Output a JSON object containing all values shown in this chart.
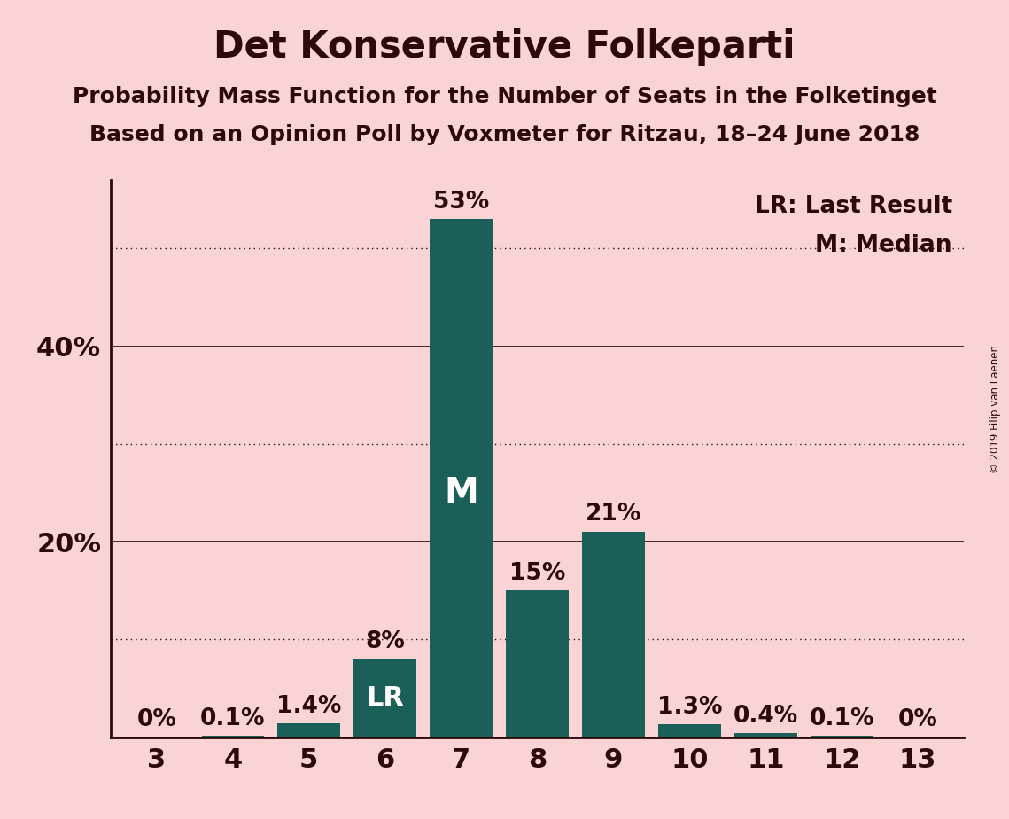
{
  "title": "Det Konservative Folkeparti",
  "subtitle1": "Probability Mass Function for the Number of Seats in the Folketinget",
  "subtitle2": "Based on an Opinion Poll by Voxmeter for Ritzau, 18–24 June 2018",
  "copyright": "© 2019 Filip van Laenen",
  "seats": [
    3,
    4,
    5,
    6,
    7,
    8,
    9,
    10,
    11,
    12,
    13
  ],
  "values": [
    0.0,
    0.1,
    1.4,
    8.0,
    53.0,
    15.0,
    21.0,
    1.3,
    0.4,
    0.1,
    0.0
  ],
  "labels": [
    "0%",
    "0.1%",
    "1.4%",
    "8%",
    "53%",
    "15%",
    "21%",
    "1.3%",
    "0.4%",
    "0.1%",
    "0%"
  ],
  "bar_color": "#1a5f58",
  "background_color": "#fad4d4",
  "text_color": "#2d0a0a",
  "legend_lr": "LR: Last Result",
  "legend_m": "M: Median",
  "lr_seat": 6,
  "median_seat": 7,
  "solid_gridlines": [
    20,
    40
  ],
  "dotted_gridlines": [
    10,
    30,
    50
  ],
  "yticks_labeled": [
    20,
    40
  ],
  "ytick_labels": [
    "20%",
    "40%"
  ],
  "ylim": [
    0,
    57
  ],
  "title_fontsize": 30,
  "subtitle_fontsize": 18,
  "tick_fontsize": 22,
  "label_fontsize": 19,
  "legend_fontsize": 19,
  "bar_width": 0.82
}
